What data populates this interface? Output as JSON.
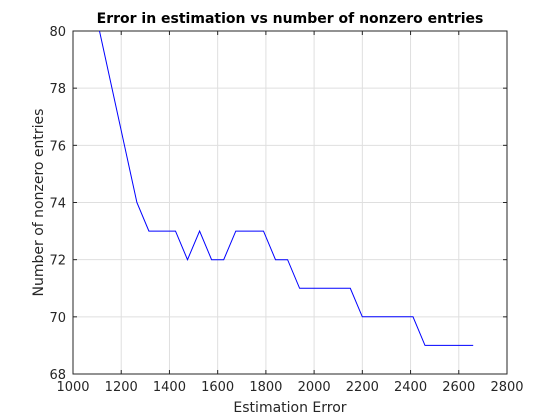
{
  "chart_data": {
    "type": "line",
    "title": "Error in estimation vs number of nonzero entries",
    "xlabel": "Estimation Error",
    "ylabel": "Number of nonzero entries",
    "xlim": [
      1000,
      2800
    ],
    "ylim": [
      68,
      80
    ],
    "xticks": [
      1000,
      1200,
      1400,
      1600,
      1800,
      2000,
      2200,
      2400,
      2600,
      2800
    ],
    "yticks": [
      68,
      70,
      72,
      74,
      76,
      78,
      80
    ],
    "grid": true,
    "series": [
      {
        "color": "#0000ff",
        "x": [
          1110,
          1265,
          1315,
          1425,
          1475,
          1525,
          1575,
          1625,
          1675,
          1790,
          1840,
          1890,
          1940,
          2150,
          2200,
          2410,
          2460,
          2660
        ],
        "y": [
          80,
          74,
          73,
          73,
          72,
          73,
          72,
          72,
          73,
          73,
          72,
          72,
          71,
          71,
          70,
          70,
          69,
          69
        ]
      }
    ]
  },
  "colors": {
    "background": "#ffffff",
    "axes": "#262626",
    "grid": "#dfdfdf",
    "line": "#0000ff"
  }
}
